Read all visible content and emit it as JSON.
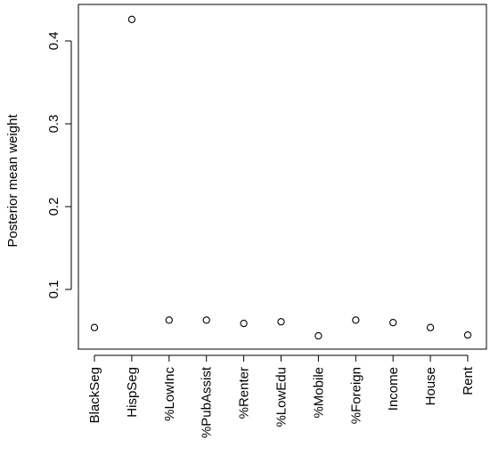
{
  "chart_data": {
    "type": "scatter",
    "title": "",
    "xlabel": "",
    "ylabel": "Posterior mean weight",
    "categories": [
      "BlackSeg",
      "HispSeg",
      "%LowInc",
      "%PubAssist",
      "%Renter",
      "%LowEdu",
      "%Mobile",
      "%Foreign",
      "Income",
      "House",
      "Rent"
    ],
    "values": [
      0.054,
      0.426,
      0.063,
      0.063,
      0.059,
      0.061,
      0.044,
      0.063,
      0.06,
      0.054,
      0.045
    ],
    "yticks": [
      0.1,
      0.2,
      0.3,
      0.4
    ],
    "ytick_labels": [
      "0.1",
      "0.2",
      "0.3",
      "0.4"
    ],
    "ylim": [
      0.03,
      0.44
    ],
    "marker": "open-circle",
    "grid": false,
    "legend": "none"
  }
}
